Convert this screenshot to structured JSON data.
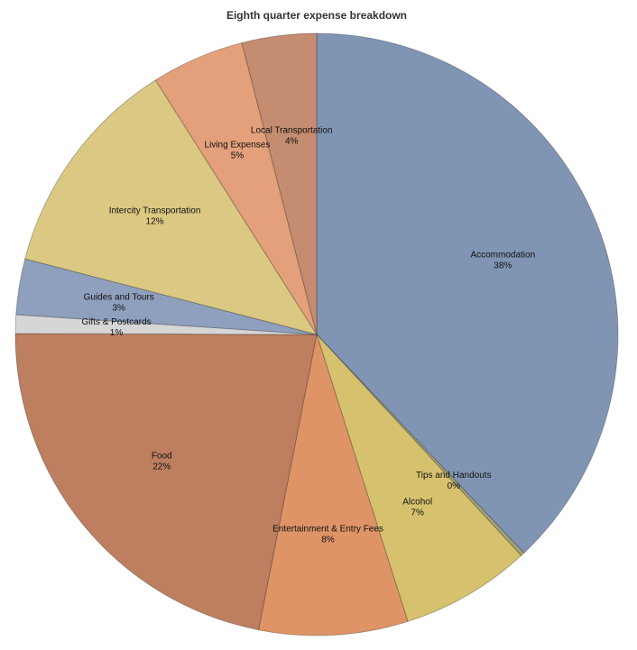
{
  "chart_data": {
    "type": "pie",
    "title": "Eighth quarter expense breakdown",
    "categories": [
      "Accommodation",
      "Tips and Handouts",
      "Alcohol",
      "Entertainment & Entry Fees",
      "Food",
      "Gifts & Postcards",
      "Guides and Tours",
      "Intercity Transportation",
      "Living Expenses",
      "Local Transportation"
    ],
    "values": [
      38,
      0.2,
      7,
      8,
      22,
      1,
      3,
      12,
      5,
      4
    ],
    "value_labels": [
      "38%",
      "0%",
      "7%",
      "8%",
      "22%",
      "1%",
      "3%",
      "12%",
      "5%",
      "4%"
    ],
    "colors": [
      "#8095b3",
      "#a3a27a",
      "#d6c26e",
      "#de9466",
      "#bd7f60",
      "#d6d6d6",
      "#8fa0be",
      "#dbc882",
      "#e3a07b",
      "#c48c70"
    ]
  }
}
